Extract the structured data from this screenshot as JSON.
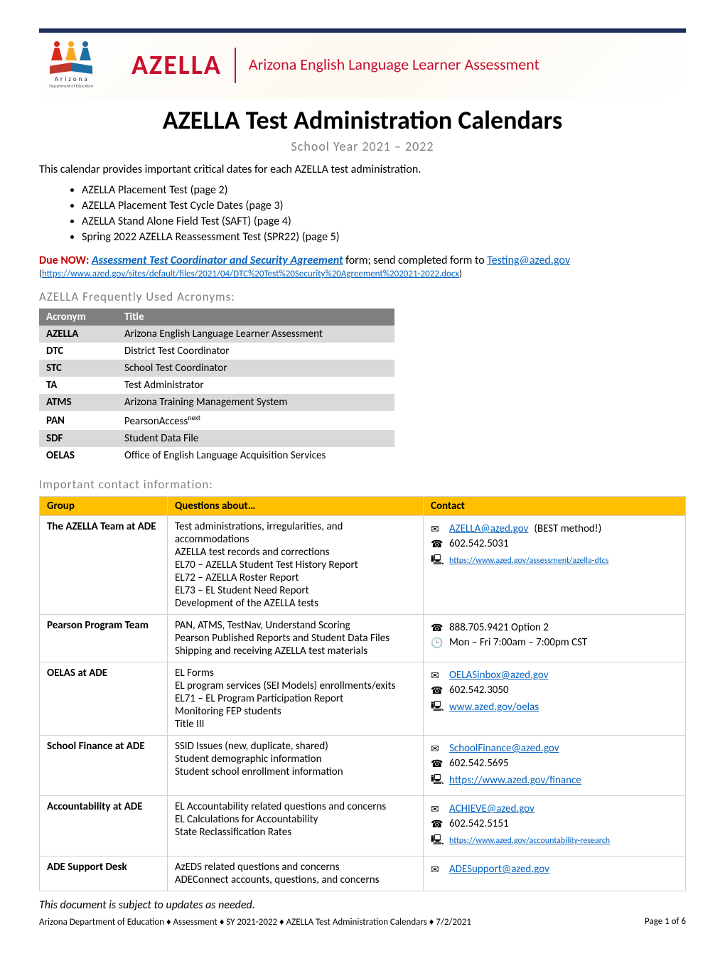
{
  "header": {
    "logo_org": "A r i z o n a",
    "logo_dept": "Department of Education",
    "wordmark": "AZELLA",
    "full_name": "Arizona English Language Learner Assessment",
    "accent_color": "#c8102e",
    "bar_color": "#1c2e5c"
  },
  "title": "AZELLA Test Administration Calendars",
  "subtitle": "School Year 2021 – 2022",
  "intro": "This calendar provides important critical dates for each AZELLA test administration.",
  "toc": [
    "AZELLA Placement Test (page 2)",
    "AZELLA Placement Test Cycle Dates (page 3)",
    "AZELLA Stand Alone Field Test (SAFT) (page 4)",
    "Spring 2022 AZELLA Reassessment Test (SPR22) (page 5)"
  ],
  "due": {
    "label": "Due NOW:",
    "link_text": "Assessment Test Coordinator and Security Agreement",
    "after_link": " form; send completed form to ",
    "email": "Testing@azed.gov",
    "url": "https://www.azed.gov/sites/default/files/2021/04/DTC%20Test%20Security%20Agreement%202021-2022.docx"
  },
  "acronym_heading": "AZELLA Frequently Used Acronyms:",
  "acronym_table": {
    "columns": [
      "Acronym",
      "Title"
    ],
    "header_bg": "#808080",
    "even_bg": "#d9d9d9",
    "rows": [
      {
        "acr": "AZELLA",
        "title": "Arizona English Language Learner Assessment"
      },
      {
        "acr": "DTC",
        "title": "District Test Coordinator"
      },
      {
        "acr": "STC",
        "title": "School Test Coordinator"
      },
      {
        "acr": "TA",
        "title": "Test Administrator"
      },
      {
        "acr": "ATMS",
        "title": "Arizona Training Management System"
      },
      {
        "acr": "PAN",
        "title_html": "PearsonAccess<sup>next</sup>"
      },
      {
        "acr": "SDF",
        "title": "Student Data File"
      },
      {
        "acr": "OELAS",
        "title": "Office of English Language Acquisition Services"
      }
    ]
  },
  "contact_heading": "Important contact information:",
  "contact_table": {
    "columns": [
      "Group",
      "Questions about…",
      "Contact"
    ],
    "header_bg": "#ffc000",
    "rows": [
      {
        "group": "The AZELLA Team at ADE",
        "questions": [
          "Test administrations, irregularities, and accommodations",
          "AZELLA test records and corrections",
          "EL70 – AZELLA Student Test History Report",
          "EL72 – AZELLA Roster Report",
          "EL73 – EL Student Need Report",
          "Development of the AZELLA tests"
        ],
        "contacts": [
          {
            "type": "email",
            "value": "AZELLA@azed.gov",
            "note": " (BEST method!)"
          },
          {
            "type": "phone",
            "value": "602.542.5031"
          },
          {
            "type": "web",
            "value": "https://www.azed.gov/assessment/azella-dtcs",
            "small": true
          }
        ]
      },
      {
        "group": "Pearson Program Team",
        "questions": [
          "PAN, ATMS, TestNav, Understand Scoring",
          "Pearson Published Reports and Student Data Files",
          "Shipping and receiving AZELLA test materials"
        ],
        "contacts": [
          {
            "type": "phone",
            "value": "888.705.9421 Option 2"
          },
          {
            "type": "clock",
            "value": "Mon – Fri 7:00am – 7:00pm CST"
          }
        ]
      },
      {
        "group": "OELAS at ADE",
        "questions": [
          "EL Forms",
          "EL program services (SEI Models) enrollments/exits",
          "EL71 – EL Program Participation Report",
          "Monitoring FEP students",
          "Title III"
        ],
        "contacts": [
          {
            "type": "email",
            "value": "OELASinbox@azed.gov"
          },
          {
            "type": "phone",
            "value": "602.542.3050"
          },
          {
            "type": "web",
            "value": "www.azed.gov/oelas"
          }
        ]
      },
      {
        "group": "School Finance at ADE",
        "questions": [
          "SSID Issues (new, duplicate, shared)",
          "Student demographic information",
          "Student school enrollment information"
        ],
        "contacts": [
          {
            "type": "email",
            "value": "SchoolFinance@azed.gov"
          },
          {
            "type": "phone",
            "value": "602.542.5695"
          },
          {
            "type": "web",
            "value": "https://www.azed.gov/finance"
          }
        ]
      },
      {
        "group": "Accountability at ADE",
        "questions": [
          "EL Accountability related questions and concerns",
          "EL Calculations for Accountability",
          "State Reclassification Rates"
        ],
        "contacts": [
          {
            "type": "email",
            "value": "ACHIEVE@azed.gov"
          },
          {
            "type": "phone",
            "value": "602.542.5151"
          },
          {
            "type": "web",
            "value": "https://www.azed.gov/accountability-research",
            "small": true
          }
        ]
      },
      {
        "group": "ADE Support Desk",
        "questions": [
          "AzEDS related questions and concerns",
          "ADEConnect accounts, questions, and concerns"
        ],
        "contacts": [
          {
            "type": "email",
            "value": "ADESupport@azed.gov"
          }
        ]
      }
    ]
  },
  "icons": {
    "email": "✉",
    "phone": "☎",
    "web": "🖳",
    "clock": "🕒"
  },
  "disclaimer": "This document is subject to updates as needed.",
  "footer": {
    "left": "Arizona Department of Education ♦ Assessment ♦ SY 2021-2022 ♦ AZELLA Test Administration Calendars ♦ 7/2/2021",
    "right": "Page 1 of 6"
  },
  "link_color": "#0563c1"
}
